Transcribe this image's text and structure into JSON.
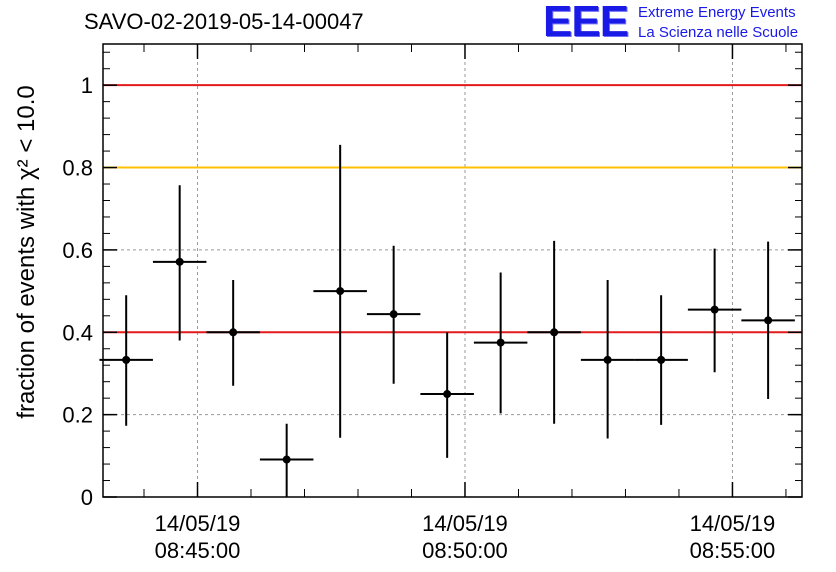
{
  "title": "SAVO-02-2019-05-14-00047",
  "logo": {
    "mark": "EEE",
    "line1": "Extreme Energy Events",
    "line2": "La Scienza nelle Scuole"
  },
  "colors": {
    "red_line": "#e31a1c",
    "yellow_line": "#ffc000",
    "points": "#000000",
    "grid": "#9a9a9a",
    "logo": "#1a1ae6"
  },
  "chart_data": {
    "type": "scatter",
    "title": "SAVO-02-2019-05-14-00047",
    "ylabel": "fraction of events with χ² < 10.0",
    "xlabel": "",
    "ylim": [
      0,
      1.1
    ],
    "xlim": [
      "2019-05-14 08:43:14",
      "2019-05-14 08:56:18"
    ],
    "grid": true,
    "y_ticks": [
      {
        "value": 0,
        "label": "0"
      },
      {
        "value": 0.2,
        "label": "0.2"
      },
      {
        "value": 0.4,
        "label": "0.4"
      },
      {
        "value": 0.6,
        "label": "0.6"
      },
      {
        "value": 0.8,
        "label": "0.8"
      },
      {
        "value": 1.0,
        "label": "1"
      }
    ],
    "x_ticks": [
      {
        "time": "2019-05-14 08:45:00",
        "date_label": "14/05/19",
        "time_label": "08:45:00"
      },
      {
        "time": "2019-05-14 08:50:00",
        "date_label": "14/05/19",
        "time_label": "08:50:00"
      },
      {
        "time": "2019-05-14 08:55:00",
        "date_label": "14/05/19",
        "time_label": "08:55:00"
      }
    ],
    "reference_lines": [
      {
        "y": 1.0,
        "color": "#e31a1c"
      },
      {
        "y": 0.8,
        "color": "#ffc000"
      },
      {
        "y": 0.4,
        "color": "#e31a1c"
      }
    ],
    "points": [
      {
        "x": "2019-05-14 08:43:40",
        "y": 0.333,
        "y_low": 0.173,
        "y_high": 0.49
      },
      {
        "x": "2019-05-14 08:44:40",
        "y": 0.571,
        "y_low": 0.38,
        "y_high": 0.757
      },
      {
        "x": "2019-05-14 08:45:40",
        "y": 0.4,
        "y_low": 0.27,
        "y_high": 0.527
      },
      {
        "x": "2019-05-14 08:46:40",
        "y": 0.091,
        "y_low": 0.0,
        "y_high": 0.178
      },
      {
        "x": "2019-05-14 08:47:40",
        "y": 0.5,
        "y_low": 0.144,
        "y_high": 0.855
      },
      {
        "x": "2019-05-14 08:48:40",
        "y": 0.444,
        "y_low": 0.275,
        "y_high": 0.61
      },
      {
        "x": "2019-05-14 08:49:40",
        "y": 0.25,
        "y_low": 0.095,
        "y_high": 0.4
      },
      {
        "x": "2019-05-14 08:50:40",
        "y": 0.375,
        "y_low": 0.203,
        "y_high": 0.545
      },
      {
        "x": "2019-05-14 08:51:40",
        "y": 0.4,
        "y_low": 0.178,
        "y_high": 0.622
      },
      {
        "x": "2019-05-14 08:52:40",
        "y": 0.333,
        "y_low": 0.142,
        "y_high": 0.527
      },
      {
        "x": "2019-05-14 08:53:40",
        "y": 0.333,
        "y_low": 0.175,
        "y_high": 0.49
      },
      {
        "x": "2019-05-14 08:54:40",
        "y": 0.455,
        "y_low": 0.303,
        "y_high": 0.603
      },
      {
        "x": "2019-05-14 08:55:40",
        "y": 0.429,
        "y_low": 0.238,
        "y_high": 0.62
      }
    ],
    "bin_width_seconds": 60
  }
}
